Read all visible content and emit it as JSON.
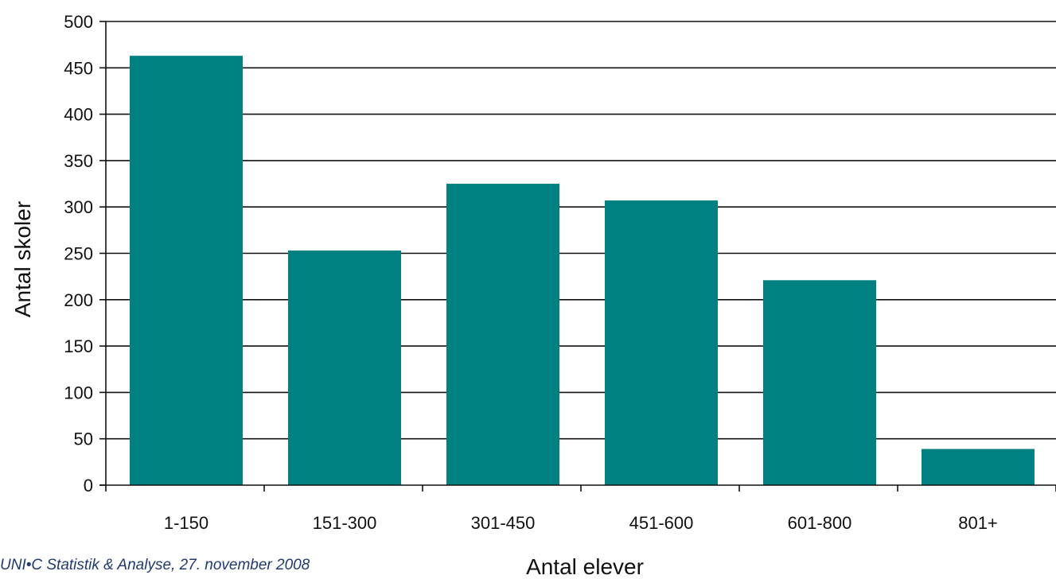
{
  "chart_data": {
    "type": "bar",
    "categories": [
      "1-150",
      "151-300",
      "301-450",
      "451-600",
      "601-800",
      "801+"
    ],
    "values": [
      463,
      253,
      325,
      307,
      221,
      39
    ],
    "xlabel": "Antal elever",
    "ylabel": "Antal skoler",
    "ylim": [
      0,
      500
    ],
    "yticks": [
      0,
      50,
      100,
      150,
      200,
      250,
      300,
      350,
      400,
      450,
      500
    ],
    "grid": true,
    "bar_color": "#008080",
    "legend": false
  },
  "source_note": "UNI•C Statistik & Analyse, 27. november 2008"
}
